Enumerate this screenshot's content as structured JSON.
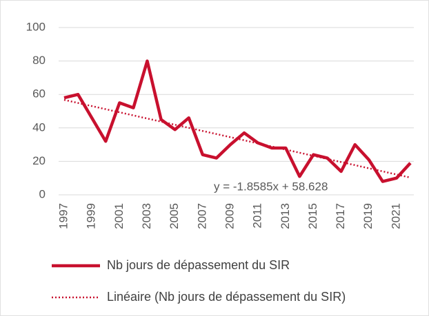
{
  "chart_data": {
    "type": "line",
    "x": [
      1997,
      1998,
      1999,
      2000,
      2001,
      2002,
      2003,
      2004,
      2005,
      2006,
      2007,
      2008,
      2009,
      2010,
      2011,
      2012,
      2013,
      2014,
      2015,
      2016,
      2017,
      2018,
      2019,
      2020,
      2021,
      2022
    ],
    "series": [
      {
        "name": "Nb jours de dépassement du SIR",
        "color": "#c8102e",
        "values": [
          58,
          60,
          46,
          32,
          55,
          52,
          80,
          45,
          39,
          46,
          24,
          22,
          30,
          37,
          31,
          28,
          28,
          11,
          24,
          22,
          14,
          30,
          21,
          8,
          10,
          19
        ]
      }
    ],
    "trendline": {
      "name": "Linéaire (Nb jours de dépassement du SIR)",
      "color": "#c8102e",
      "slope": -1.8585,
      "intercept": 58.628,
      "label": "y = -1.8585x + 58.628"
    },
    "xlim": [
      1997,
      2022
    ],
    "xticks": [
      1997,
      1999,
      2001,
      2003,
      2005,
      2007,
      2009,
      2011,
      2013,
      2015,
      2017,
      2019,
      2021
    ],
    "ylim": [
      0,
      100
    ],
    "yticks": [
      0,
      20,
      40,
      60,
      80,
      100
    ],
    "grid": true,
    "legend": "bottom"
  }
}
